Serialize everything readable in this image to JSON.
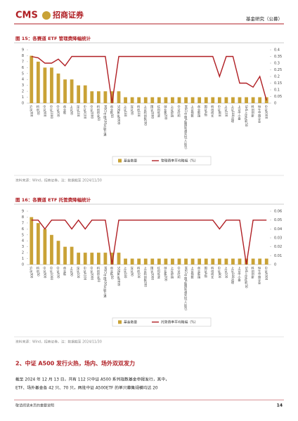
{
  "header": {
    "brand": "CMS",
    "brand_cn": "招商证券",
    "section": "基金研究（公募）"
  },
  "chart_data": [
    {
      "type": "bar",
      "title": "图 15：各赛道 ETF 管理费降幅统计",
      "categories": [
        "沪深300",
        "科创50",
        "中证500",
        "中证1000",
        "中证A50",
        "创业板",
        "上证50",
        "深证100",
        "中证A100",
        "中证2000",
        "科创创业50",
        "MSCI中国A50互联互通",
        "创业板50",
        "SGE黄金9999",
        "上证180",
        "深证50",
        "科创100",
        "上证科创板200",
        "国证2000",
        "红利低波",
        "创业板200",
        "上证综指",
        "中证红利",
        "MSCI中国A股国际通实时(人民币)",
        "上证指数",
        "创业板指",
        "国证A指",
        "科创成长",
        "中证800",
        "上证100",
        "上证180治理",
        "上证中小盘",
        "SHS上证红利50",
        "科创创新",
        "恒生中国企业",
        "中证A500"
      ],
      "series": [
        {
          "name": "基金数量",
          "kind": "bar",
          "color": "#c9a236",
          "values": [
            8,
            7,
            6,
            6,
            5,
            4,
            4,
            3,
            3,
            2,
            2,
            2,
            2,
            2,
            1,
            1,
            1,
            1,
            1,
            1,
            1,
            1,
            1,
            1,
            1,
            1,
            1,
            1,
            1,
            1,
            1,
            1,
            1,
            1,
            1,
            1
          ]
        },
        {
          "name": "管理费率平均降幅（%）",
          "kind": "line",
          "axis": "y2",
          "color": "#b01f24",
          "values": [
            0.35,
            0.34,
            0.3,
            0.3,
            0.33,
            0.28,
            0.35,
            0.35,
            0.35,
            0.35,
            0.35,
            0.35,
            0,
            0.35,
            0.35,
            0.35,
            0.35,
            0.35,
            0.35,
            0.35,
            0.35,
            0.35,
            0.35,
            0.35,
            0.35,
            0.35,
            0.35,
            0.35,
            0.2,
            0.35,
            0.35,
            0.15,
            0.15,
            0.12,
            0.2,
            0.02
          ]
        }
      ],
      "ylim": [
        0,
        9
      ],
      "yticks": [
        0,
        1,
        2,
        3,
        4,
        5,
        6,
        7,
        8,
        9
      ],
      "y2lim": [
        0,
        0.4
      ],
      "y2ticks": [
        0,
        0.05,
        0.1,
        0.15,
        0.2,
        0.25,
        0.3,
        0.35,
        0.4
      ],
      "source": "资料来源：Wind，招商证券。注：数据截至 2024/11/30"
    },
    {
      "type": "bar",
      "title": "图 16：各赛道 ETF 托管费降幅统计",
      "categories": [
        "沪深300",
        "科创50",
        "中证500",
        "中证1000",
        "中证A50",
        "创业板",
        "上证50",
        "深证100",
        "中证A100",
        "中证2000",
        "科创创业50",
        "MSCI中国A50互联互通",
        "创业板50",
        "SGE黄金9999",
        "上证180",
        "深证50",
        "科创100",
        "上证科创板200",
        "国证2000",
        "红利低波",
        "创业板200",
        "上证综指",
        "中证红利",
        "MSCI中国A股国际通实时(人民币)",
        "上证指数",
        "创业板指",
        "国证A指",
        "科创成长",
        "中证800",
        "上证100",
        "上证180治理",
        "上证中小盘",
        "SHS上证红利50",
        "科创创新",
        "恒生中国企业",
        "中证A500"
      ],
      "series": [
        {
          "name": "基金数量",
          "kind": "bar",
          "color": "#c9a236",
          "values": [
            8,
            7,
            6,
            5,
            4,
            3,
            3,
            2,
            2,
            2,
            2,
            2,
            2,
            2,
            1,
            1,
            1,
            1,
            1,
            1,
            1,
            1,
            1,
            1,
            1,
            1,
            1,
            1,
            1,
            1,
            1,
            1,
            1,
            1,
            1,
            1
          ]
        },
        {
          "name": "托管费率平均降幅（%）",
          "kind": "line",
          "axis": "y2",
          "color": "#b01f24",
          "values": [
            0.05,
            0.05,
            0.04,
            0.05,
            0.05,
            0.05,
            0.04,
            0.05,
            0.04,
            0.05,
            0.05,
            0.05,
            0,
            0.05,
            0.05,
            0.05,
            0.05,
            0.05,
            0.05,
            0.05,
            0.05,
            0.05,
            0.05,
            0.05,
            0.05,
            0.05,
            0.05,
            0.05,
            0.04,
            0.05,
            0.05,
            0.05,
            0,
            0.05,
            0.05,
            0.05
          ]
        }
      ],
      "ylim": [
        0,
        9
      ],
      "yticks": [
        0,
        1,
        2,
        3,
        4,
        5,
        6,
        7,
        8,
        9
      ],
      "y2lim": [
        0,
        0.06
      ],
      "y2ticks": [
        0,
        0.01,
        0.02,
        0.03,
        0.04,
        0.05,
        0.06
      ],
      "source": "资料来源：Wind，招商证券。注：数据截至 2024/11/30"
    }
  ],
  "section": {
    "heading": "2、中证 A500 发行火热，场内、场外双双发力",
    "lines": [
      "截至 2024 年 12 月 13 日，共有 112 只中证 A500 系列指数基金申报发行，其中，",
      "ETF、场外基金各 42 只、70 只，两批中证 A500ETF 的单只募集规模均达 20"
    ]
  },
  "footer": {
    "note": "敬请阅读末页的重要说明",
    "page": "14"
  }
}
